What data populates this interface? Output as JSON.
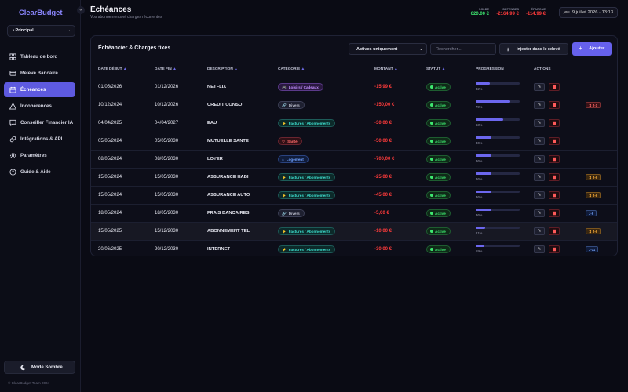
{
  "sidebar": {
    "brand": "ClearBudget",
    "collapse_icon": "«",
    "account": "• Principal",
    "nav": [
      {
        "label": "Tableau de bord",
        "icon": "grid-icon",
        "active": false
      },
      {
        "label": "Relevé Bancaire",
        "icon": "bank-icon",
        "active": false
      },
      {
        "label": "Échéances",
        "icon": "calendar-icon",
        "active": true
      },
      {
        "label": "Incohérences",
        "icon": "alert-icon",
        "active": false
      },
      {
        "label": "Conseiller Financier IA",
        "icon": "chat-icon",
        "active": false
      },
      {
        "label": "Intégrations & API",
        "icon": "link-icon",
        "active": false
      },
      {
        "label": "Paramètres",
        "icon": "gear-icon",
        "active": false
      },
      {
        "label": "Guide & Aide",
        "icon": "help-icon",
        "active": false
      }
    ],
    "mode_label": "Mode Sombre",
    "footer": "© ClearBudget Team 2024"
  },
  "header": {
    "title": "Échéances",
    "subtitle": "Vos abonnements et charges récurrentes",
    "stats": [
      {
        "label": "SOLDE",
        "value": "620.00 €",
        "color": "#3ee870"
      },
      {
        "label": "DÉPENSES",
        "value": "-2164.99 €",
        "color": "#ff3b3b"
      },
      {
        "label": "ÉPARGNE",
        "value": "-114.99 €",
        "color": "#ff3b3b"
      }
    ],
    "date": "jeu. 9 juillet 2026 · 13:13"
  },
  "card": {
    "title": "Échéancier & Charges fixes",
    "filter_value": "Actives uniquement",
    "search_placeholder": "Rechercher...",
    "inject_label": "Injecter dans le relevé",
    "add_label": "Ajouter"
  },
  "table": {
    "headers": {
      "start": "DATE DÉBUT",
      "end": "DATE FIN",
      "desc": "DESCRIPTION",
      "cat": "CATÉGORIE",
      "amount": "MONTANT",
      "status": "STATUT",
      "progress": "PROGRESSION",
      "actions": "ACTIONS"
    },
    "rows": [
      {
        "start": "01/05/2026",
        "end": "01/12/2026",
        "desc": "NETFLIX",
        "cat": "Loisirs / Cadeaux",
        "cat_icon": "🎮",
        "cat_color": "#c390ff",
        "cat_bg": "#2a1840",
        "cat_border": "#5b3a8a",
        "amount": "-15,99 €",
        "status": "Active",
        "progress": 0.32,
        "pct": "32%",
        "tag": "",
        "tag_color": "",
        "tag_bg": ""
      },
      {
        "start": "10/12/2024",
        "end": "10/12/2026",
        "desc": "CREDIT CONSO",
        "cat": "Divers",
        "cat_icon": "🔗",
        "cat_color": "#b9bbc9",
        "cat_bg": "#1e2030",
        "cat_border": "#3c3f55",
        "amount": "-150,00 €",
        "status": "Active",
        "progress": 0.79,
        "pct": "79%",
        "tag": "♜ J-1",
        "tag_color": "#ff6b6b",
        "tag_bg": "#3a1116"
      },
      {
        "start": "04/04/2025",
        "end": "04/04/2027",
        "desc": "EAU",
        "cat": "Factures / Abonnements",
        "cat_icon": "⚡",
        "cat_color": "#3ee0d0",
        "cat_bg": "#0c2a2a",
        "cat_border": "#1d5b58",
        "amount": "-30,00 €",
        "status": "Active",
        "progress": 0.63,
        "pct": "63%",
        "tag": "",
        "tag_color": "",
        "tag_bg": ""
      },
      {
        "start": "05/05/2024",
        "end": "05/05/2030",
        "desc": "MUTUELLE SANTE",
        "cat": "Santé",
        "cat_icon": "♡",
        "cat_color": "#ff6b6b",
        "cat_bg": "#2e1016",
        "cat_border": "#6a2530",
        "amount": "-50,00 €",
        "status": "Active",
        "progress": 0.36,
        "pct": "36%",
        "tag": "",
        "tag_color": "",
        "tag_bg": ""
      },
      {
        "start": "08/05/2024",
        "end": "08/05/2030",
        "desc": "LOYER",
        "cat": "Logement",
        "cat_icon": "⌂",
        "cat_color": "#6fa2ff",
        "cat_bg": "#101c3a",
        "cat_border": "#2a4380",
        "amount": "-700,00 €",
        "status": "Active",
        "progress": 0.36,
        "pct": "36%",
        "tag": "",
        "tag_color": "",
        "tag_bg": ""
      },
      {
        "start": "15/05/2024",
        "end": "15/05/2030",
        "desc": "ASSURANCE HABI",
        "cat": "Factures / Abonnements",
        "cat_icon": "⚡",
        "cat_color": "#3ee0d0",
        "cat_bg": "#0c2a2a",
        "cat_border": "#1d5b58",
        "amount": "-25,00 €",
        "status": "Active",
        "progress": 0.36,
        "pct": "36%",
        "tag": "♜ J-6",
        "tag_color": "#ffb13d",
        "tag_bg": "#3a2710"
      },
      {
        "start": "15/05/2024",
        "end": "15/05/2030",
        "desc": "ASSURANCE AUTO",
        "cat": "Factures / Abonnements",
        "cat_icon": "⚡",
        "cat_color": "#3ee0d0",
        "cat_bg": "#0c2a2a",
        "cat_border": "#1d5b58",
        "amount": "-45,00 €",
        "status": "Active",
        "progress": 0.36,
        "pct": "36%",
        "tag": "♜ J-6",
        "tag_color": "#ffb13d",
        "tag_bg": "#3a2710"
      },
      {
        "start": "18/05/2024",
        "end": "18/05/2030",
        "desc": "FRAIS BANCAIRES",
        "cat": "Divers",
        "cat_icon": "🔗",
        "cat_color": "#b9bbc9",
        "cat_bg": "#1e2030",
        "cat_border": "#3c3f55",
        "amount": "-5,00 €",
        "status": "Active",
        "progress": 0.36,
        "pct": "36%",
        "tag": "J-9",
        "tag_color": "#7aa8ff",
        "tag_bg": "#0f1b3a"
      },
      {
        "start": "15/05/2025",
        "end": "15/12/2030",
        "desc": "ABONNEMENT TEL",
        "cat": "Factures / Abonnements",
        "cat_icon": "⚡",
        "cat_color": "#3ee0d0",
        "cat_bg": "#0c2a2a",
        "cat_border": "#1d5b58",
        "amount": "-10,00 €",
        "status": "Active",
        "progress": 0.21,
        "pct": "21%",
        "tag": "♜ J-6",
        "tag_color": "#ffb13d",
        "tag_bg": "#3a2710"
      },
      {
        "start": "20/06/2025",
        "end": "20/12/2030",
        "desc": "INTERNET",
        "cat": "Factures / Abonnements",
        "cat_icon": "⚡",
        "cat_color": "#3ee0d0",
        "cat_bg": "#0c2a2a",
        "cat_border": "#1d5b58",
        "amount": "-30,00 €",
        "status": "Active",
        "progress": 0.19,
        "pct": "19%",
        "tag": "J-11",
        "tag_color": "#7aa8ff",
        "tag_bg": "#0f1b3a"
      }
    ]
  }
}
